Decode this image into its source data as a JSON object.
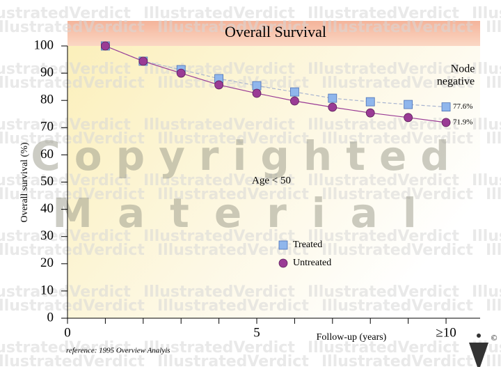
{
  "chart_data": {
    "type": "line",
    "title": "Overall Survival",
    "y_label": "Overall survival (%)",
    "x_label": "Follow-up (years)",
    "annotation": "Age < 50",
    "subgroup": [
      "Node",
      "negative"
    ],
    "reference": "reference: 1995 Overview Analyis",
    "watermark": "IllustratedVerdict",
    "copyright": [
      "Copyrighted",
      "Material"
    ],
    "copyright_symbol": "©",
    "legend": "center",
    "xlim": [
      0,
      10.9
    ],
    "xticks": [
      0,
      5,
      {
        "value": 10,
        "label": "≥10"
      }
    ],
    "xminorticks": [
      1,
      2,
      3,
      4,
      6,
      7,
      8,
      9
    ],
    "ylim": [
      0,
      100
    ],
    "yticks": [
      0,
      10,
      20,
      30,
      40,
      50,
      60,
      70,
      80,
      90,
      100
    ],
    "x": [
      1,
      2,
      3,
      4,
      5,
      6,
      7,
      8,
      9,
      10
    ],
    "series": [
      {
        "name": "Treated",
        "color": "#8fb6ec",
        "marker": "square",
        "values": [
          100,
          94.4,
          91.3,
          88,
          85.4,
          83.1,
          80.8,
          79.5,
          78.5,
          77.6
        ],
        "value_labels": [
          null,
          null,
          null,
          null,
          null,
          null,
          null,
          null,
          null,
          "77.6%"
        ]
      },
      {
        "name": "Untreated",
        "color": "#9a3b95",
        "marker": "circle",
        "values": [
          100,
          94.4,
          90,
          85.7,
          82.6,
          79.8,
          77.5,
          75.4,
          73.7,
          71.9
        ],
        "value_labels": [
          null,
          null,
          null,
          null,
          null,
          null,
          null,
          null,
          null,
          "71.9%"
        ]
      }
    ]
  }
}
